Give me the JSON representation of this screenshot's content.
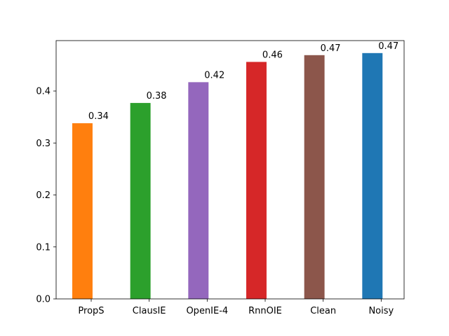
{
  "chart_data": {
    "type": "bar",
    "title": "",
    "xlabel": "",
    "ylabel": "",
    "categories": [
      "PropS",
      "ClausIE",
      "OpenIE-4",
      "RnnOIE",
      "Clean",
      "Noisy"
    ],
    "values": [
      0.338,
      0.377,
      0.417,
      0.456,
      0.469,
      0.473
    ],
    "data_labels": [
      "0.34",
      "0.38",
      "0.42",
      "0.46",
      "0.47",
      "0.47"
    ],
    "colors": [
      "#ff7f0e",
      "#2ca02c",
      "#9467bd",
      "#d62728",
      "#8c564b",
      "#1f77b4"
    ],
    "ylim": [
      0,
      0.497
    ],
    "yticks": [
      0.0,
      0.1,
      0.2,
      0.3,
      0.4
    ],
    "ytick_labels": [
      "0.0",
      "0.1",
      "0.2",
      "0.3",
      "0.4"
    ],
    "grid": false,
    "legend": "none"
  }
}
